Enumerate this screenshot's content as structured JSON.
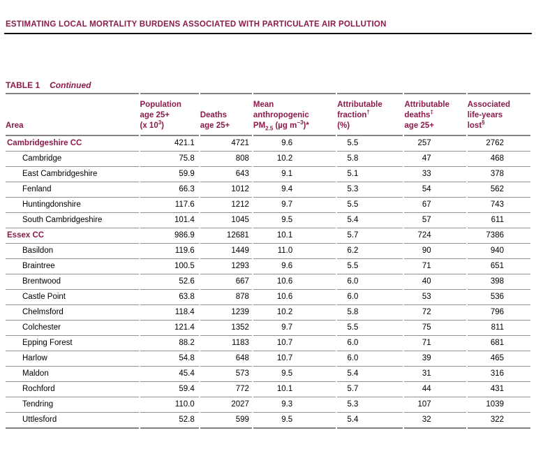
{
  "colors": {
    "accent": "#8C1A4B"
  },
  "page": {
    "running_title": "ESTIMATING LOCAL MORTALITY BURDENS ASSOCIATED WITH PARTICULATE AIR POLLUTION",
    "table_label": "TABLE 1",
    "table_continued": "Continued"
  },
  "table": {
    "headers": {
      "area": "Area",
      "population": {
        "l1": "Population",
        "l2": "age 25+",
        "l3_pre": "(x 10",
        "l3_sup": "3",
        "l3_post": ")"
      },
      "deaths": {
        "l1": "Deaths",
        "l2": "age 25+"
      },
      "pm": {
        "l1": "Mean",
        "l2": "anthropogenic",
        "l3_pre": "PM",
        "l3_sub": "2.5",
        "l3_mid": " (µg m",
        "l3_sup": "−3",
        "l3_post": ")*"
      },
      "fraction": {
        "l1": "Attributable",
        "l2_pre": "fraction",
        "l2_sup": "†",
        "l3": "(%)"
      },
      "attr_deaths": {
        "l1": "Attributable",
        "l2_pre": "deaths",
        "l2_sup": "‡",
        "l3": "age 25+"
      },
      "life_years": {
        "l1": "Associated",
        "l2": "life-years",
        "l3_pre": "lost",
        "l3_sup": "§"
      }
    },
    "rows": [
      {
        "section": true,
        "area": "Cambridgeshire CC",
        "population": "421.1",
        "deaths": "4721",
        "pm25": "9.6",
        "fraction": "5.5",
        "attr_deaths": "257",
        "life_years": "2762"
      },
      {
        "section": false,
        "area": "Cambridge",
        "population": "75.8",
        "deaths": "808",
        "pm25": "10.2",
        "fraction": "5.8",
        "attr_deaths": "47",
        "life_years": "468"
      },
      {
        "section": false,
        "area": "East Cambridgeshire",
        "population": "59.9",
        "deaths": "643",
        "pm25": "9.1",
        "fraction": "5.1",
        "attr_deaths": "33",
        "life_years": "378"
      },
      {
        "section": false,
        "area": "Fenland",
        "population": "66.3",
        "deaths": "1012",
        "pm25": "9.4",
        "fraction": "5.3",
        "attr_deaths": "54",
        "life_years": "562"
      },
      {
        "section": false,
        "area": "Huntingdonshire",
        "population": "117.6",
        "deaths": "1212",
        "pm25": "9.7",
        "fraction": "5.5",
        "attr_deaths": "67",
        "life_years": "743"
      },
      {
        "section": false,
        "area": "South Cambridgeshire",
        "population": "101.4",
        "deaths": "1045",
        "pm25": "9.5",
        "fraction": "5.4",
        "attr_deaths": "57",
        "life_years": "611"
      },
      {
        "section": true,
        "area": "Essex CC",
        "population": "986.9",
        "deaths": "12681",
        "pm25": "10.1",
        "fraction": "5.7",
        "attr_deaths": "724",
        "life_years": "7386"
      },
      {
        "section": false,
        "area": "Basildon",
        "population": "119.6",
        "deaths": "1449",
        "pm25": "11.0",
        "fraction": "6.2",
        "attr_deaths": "90",
        "life_years": "940"
      },
      {
        "section": false,
        "area": "Braintree",
        "population": "100.5",
        "deaths": "1293",
        "pm25": "9.6",
        "fraction": "5.5",
        "attr_deaths": "71",
        "life_years": "651"
      },
      {
        "section": false,
        "area": "Brentwood",
        "population": "52.6",
        "deaths": "667",
        "pm25": "10.6",
        "fraction": "6.0",
        "attr_deaths": "40",
        "life_years": "398"
      },
      {
        "section": false,
        "area": "Castle Point",
        "population": "63.8",
        "deaths": "878",
        "pm25": "10.6",
        "fraction": "6.0",
        "attr_deaths": "53",
        "life_years": "536"
      },
      {
        "section": false,
        "area": "Chelmsford",
        "population": "118.4",
        "deaths": "1239",
        "pm25": "10.2",
        "fraction": "5.8",
        "attr_deaths": "72",
        "life_years": "796"
      },
      {
        "section": false,
        "area": "Colchester",
        "population": "121.4",
        "deaths": "1352",
        "pm25": "9.7",
        "fraction": "5.5",
        "attr_deaths": "75",
        "life_years": "811"
      },
      {
        "section": false,
        "area": "Epping Forest",
        "population": "88.2",
        "deaths": "1183",
        "pm25": "10.7",
        "fraction": "6.0",
        "attr_deaths": "71",
        "life_years": "681"
      },
      {
        "section": false,
        "area": "Harlow",
        "population": "54.8",
        "deaths": "648",
        "pm25": "10.7",
        "fraction": "6.0",
        "attr_deaths": "39",
        "life_years": "465"
      },
      {
        "section": false,
        "area": "Maldon",
        "population": "45.4",
        "deaths": "573",
        "pm25": "9.5",
        "fraction": "5.4",
        "attr_deaths": "31",
        "life_years": "316"
      },
      {
        "section": false,
        "area": "Rochford",
        "population": "59.4",
        "deaths": "772",
        "pm25": "10.1",
        "fraction": "5.7",
        "attr_deaths": "44",
        "life_years": "431"
      },
      {
        "section": false,
        "area": "Tendring",
        "population": "110.0",
        "deaths": "2027",
        "pm25": "9.3",
        "fraction": "5.3",
        "attr_deaths": "107",
        "life_years": "1039"
      },
      {
        "section": false,
        "area": "Uttlesford",
        "population": "52.8",
        "deaths": "599",
        "pm25": "9.5",
        "fraction": "5.4",
        "attr_deaths": "32",
        "life_years": "322"
      }
    ]
  }
}
